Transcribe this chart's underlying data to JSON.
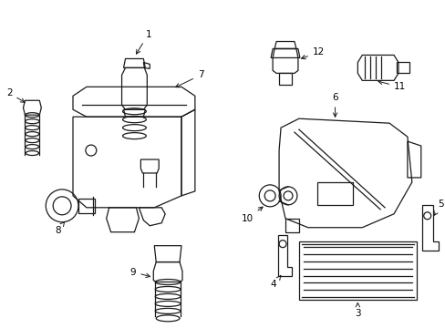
{
  "bg_color": "#ffffff",
  "line_color": "#1a1a1a",
  "fig_width": 4.89,
  "fig_height": 3.6,
  "dpi": 100,
  "lw": 0.9,
  "fs": 7.5
}
